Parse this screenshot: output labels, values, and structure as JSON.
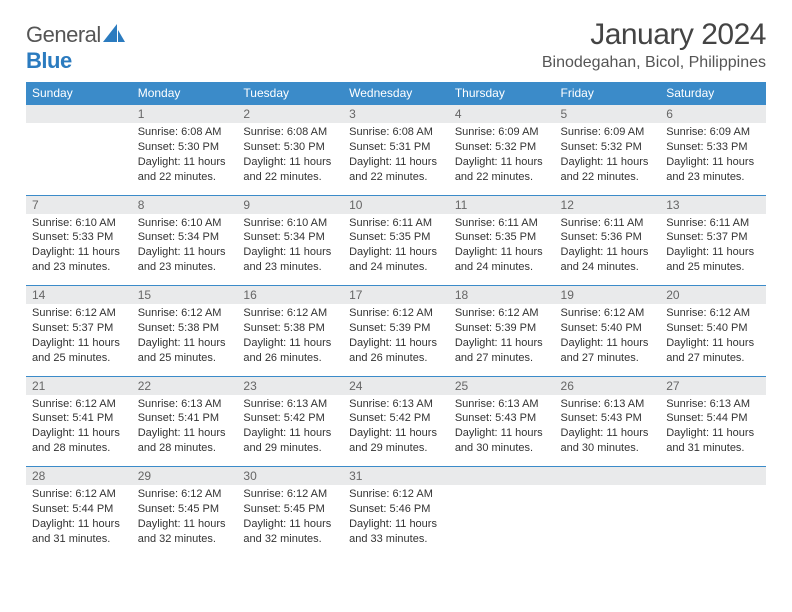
{
  "brand": {
    "text1": "General",
    "text2": "Blue",
    "sail_color": "#2b7bbf"
  },
  "header": {
    "title": "January 2024",
    "location": "Binodegahan, Bicol, Philippines"
  },
  "colors": {
    "header_bg": "#3b8bc9",
    "header_fg": "#ffffff",
    "daterow_bg": "#e9eaeb",
    "daterow_fg": "#666666",
    "border": "#3b8bc9",
    "text": "#333333"
  },
  "weekdays": [
    "Sunday",
    "Monday",
    "Tuesday",
    "Wednesday",
    "Thursday",
    "Friday",
    "Saturday"
  ],
  "weeks": [
    {
      "dates": [
        "",
        "1",
        "2",
        "3",
        "4",
        "5",
        "6"
      ],
      "cells": [
        null,
        {
          "sunrise": "6:08 AM",
          "sunset": "5:30 PM",
          "daylight": "11 hours and 22 minutes."
        },
        {
          "sunrise": "6:08 AM",
          "sunset": "5:30 PM",
          "daylight": "11 hours and 22 minutes."
        },
        {
          "sunrise": "6:08 AM",
          "sunset": "5:31 PM",
          "daylight": "11 hours and 22 minutes."
        },
        {
          "sunrise": "6:09 AM",
          "sunset": "5:32 PM",
          "daylight": "11 hours and 22 minutes."
        },
        {
          "sunrise": "6:09 AM",
          "sunset": "5:32 PM",
          "daylight": "11 hours and 22 minutes."
        },
        {
          "sunrise": "6:09 AM",
          "sunset": "5:33 PM",
          "daylight": "11 hours and 23 minutes."
        }
      ]
    },
    {
      "dates": [
        "7",
        "8",
        "9",
        "10",
        "11",
        "12",
        "13"
      ],
      "cells": [
        {
          "sunrise": "6:10 AM",
          "sunset": "5:33 PM",
          "daylight": "11 hours and 23 minutes."
        },
        {
          "sunrise": "6:10 AM",
          "sunset": "5:34 PM",
          "daylight": "11 hours and 23 minutes."
        },
        {
          "sunrise": "6:10 AM",
          "sunset": "5:34 PM",
          "daylight": "11 hours and 23 minutes."
        },
        {
          "sunrise": "6:11 AM",
          "sunset": "5:35 PM",
          "daylight": "11 hours and 24 minutes."
        },
        {
          "sunrise": "6:11 AM",
          "sunset": "5:35 PM",
          "daylight": "11 hours and 24 minutes."
        },
        {
          "sunrise": "6:11 AM",
          "sunset": "5:36 PM",
          "daylight": "11 hours and 24 minutes."
        },
        {
          "sunrise": "6:11 AM",
          "sunset": "5:37 PM",
          "daylight": "11 hours and 25 minutes."
        }
      ]
    },
    {
      "dates": [
        "14",
        "15",
        "16",
        "17",
        "18",
        "19",
        "20"
      ],
      "cells": [
        {
          "sunrise": "6:12 AM",
          "sunset": "5:37 PM",
          "daylight": "11 hours and 25 minutes."
        },
        {
          "sunrise": "6:12 AM",
          "sunset": "5:38 PM",
          "daylight": "11 hours and 25 minutes."
        },
        {
          "sunrise": "6:12 AM",
          "sunset": "5:38 PM",
          "daylight": "11 hours and 26 minutes."
        },
        {
          "sunrise": "6:12 AM",
          "sunset": "5:39 PM",
          "daylight": "11 hours and 26 minutes."
        },
        {
          "sunrise": "6:12 AM",
          "sunset": "5:39 PM",
          "daylight": "11 hours and 27 minutes."
        },
        {
          "sunrise": "6:12 AM",
          "sunset": "5:40 PM",
          "daylight": "11 hours and 27 minutes."
        },
        {
          "sunrise": "6:12 AM",
          "sunset": "5:40 PM",
          "daylight": "11 hours and 27 minutes."
        }
      ]
    },
    {
      "dates": [
        "21",
        "22",
        "23",
        "24",
        "25",
        "26",
        "27"
      ],
      "cells": [
        {
          "sunrise": "6:12 AM",
          "sunset": "5:41 PM",
          "daylight": "11 hours and 28 minutes."
        },
        {
          "sunrise": "6:13 AM",
          "sunset": "5:41 PM",
          "daylight": "11 hours and 28 minutes."
        },
        {
          "sunrise": "6:13 AM",
          "sunset": "5:42 PM",
          "daylight": "11 hours and 29 minutes."
        },
        {
          "sunrise": "6:13 AM",
          "sunset": "5:42 PM",
          "daylight": "11 hours and 29 minutes."
        },
        {
          "sunrise": "6:13 AM",
          "sunset": "5:43 PM",
          "daylight": "11 hours and 30 minutes."
        },
        {
          "sunrise": "6:13 AM",
          "sunset": "5:43 PM",
          "daylight": "11 hours and 30 minutes."
        },
        {
          "sunrise": "6:13 AM",
          "sunset": "5:44 PM",
          "daylight": "11 hours and 31 minutes."
        }
      ]
    },
    {
      "dates": [
        "28",
        "29",
        "30",
        "31",
        "",
        "",
        ""
      ],
      "cells": [
        {
          "sunrise": "6:12 AM",
          "sunset": "5:44 PM",
          "daylight": "11 hours and 31 minutes."
        },
        {
          "sunrise": "6:12 AM",
          "sunset": "5:45 PM",
          "daylight": "11 hours and 32 minutes."
        },
        {
          "sunrise": "6:12 AM",
          "sunset": "5:45 PM",
          "daylight": "11 hours and 32 minutes."
        },
        {
          "sunrise": "6:12 AM",
          "sunset": "5:46 PM",
          "daylight": "11 hours and 33 minutes."
        },
        null,
        null,
        null
      ]
    }
  ],
  "labels": {
    "sunrise": "Sunrise:",
    "sunset": "Sunset:",
    "daylight": "Daylight:"
  }
}
